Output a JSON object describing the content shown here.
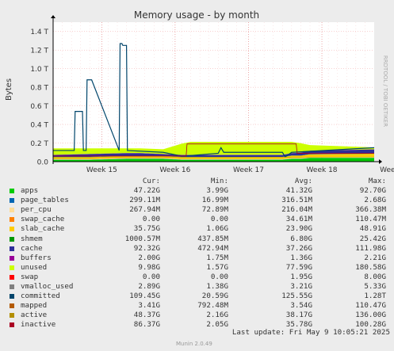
{
  "chart_data": {
    "type": "area",
    "title": "Memory usage - by month",
    "ylabel": "Bytes",
    "side_label": "RRDTOOL / TOBI OETIKER",
    "ylim": [
      0,
      1.5
    ],
    "yunit": "T",
    "yticks": [
      {
        "value": 0,
        "label": "0.0"
      },
      {
        "value": 0.2,
        "label": "0.2 T"
      },
      {
        "value": 0.4,
        "label": "0.4 T"
      },
      {
        "value": 0.6,
        "label": "0.6 T"
      },
      {
        "value": 0.8,
        "label": "0.8 T"
      },
      {
        "value": 1.0,
        "label": "1.0 T"
      },
      {
        "value": 1.2,
        "label": "1.2 T"
      },
      {
        "value": 1.4,
        "label": "1.4 T"
      }
    ],
    "xlim": [
      0,
      35
    ],
    "xticks": [
      {
        "value": 5.3,
        "label": "Week 15"
      },
      {
        "value": 13.3,
        "label": "Week 16"
      },
      {
        "value": 21.3,
        "label": "Week 17"
      },
      {
        "value": 29.3,
        "label": "Week 18"
      },
      {
        "value": 37.3,
        "label": "Week 19"
      }
    ],
    "stack_order": [
      "apps",
      "page_tables",
      "per_cpu",
      "swap_cache",
      "slab_cache",
      "shmem",
      "cache",
      "buffers",
      "unused",
      "swap"
    ],
    "x": [
      0,
      4,
      8,
      9,
      9.5,
      12,
      14,
      15,
      17,
      25,
      26,
      27,
      28,
      35
    ],
    "stacks": {
      "apps": [
        0.02,
        0.02,
        0.03,
        0.03,
        0.03,
        0.03,
        0.02,
        0.02,
        0.02,
        0.02,
        0.03,
        0.03,
        0.04,
        0.04
      ],
      "page_tables": [
        0.002,
        0.002,
        0.002,
        0.002,
        0.002,
        0.002,
        0.002,
        0.002,
        0.002,
        0.002,
        0.002,
        0.002,
        0.002,
        0.002
      ],
      "per_cpu": [
        0.005,
        0.005,
        0.005,
        0.005,
        0.005,
        0.005,
        0.005,
        0.005,
        0.005,
        0.005,
        0.005,
        0.005,
        0.005,
        0.005
      ],
      "swap_cache": [
        0.002,
        0.002,
        0.002,
        0.002,
        0.002,
        0.002,
        0.002,
        0.002,
        0.002,
        0.002,
        0.002,
        0.002,
        0.002,
        0.002
      ],
      "slab_cache": [
        0.02,
        0.02,
        0.02,
        0.02,
        0.02,
        0.02,
        0.02,
        0.02,
        0.02,
        0.02,
        0.025,
        0.025,
        0.03,
        0.035
      ],
      "shmem": [
        0.002,
        0.002,
        0.002,
        0.002,
        0.002,
        0.002,
        0.002,
        0.002,
        0.002,
        0.002,
        0.002,
        0.002,
        0.002,
        0.002
      ],
      "cache": [
        0.02,
        0.03,
        0.03,
        0.03,
        0.03,
        0.02,
        0.02,
        0.02,
        0.02,
        0.02,
        0.025,
        0.03,
        0.035,
        0.045
      ],
      "buffers": [
        0.002,
        0.002,
        0.002,
        0.002,
        0.002,
        0.002,
        0.002,
        0.002,
        0.002,
        0.002,
        0.002,
        0.002,
        0.002,
        0.002
      ],
      "unused": [
        0.07,
        0.06,
        0.05,
        0.05,
        0.05,
        0.05,
        0.12,
        0.14,
        0.14,
        0.14,
        0.12,
        0.1,
        0.06,
        0.02
      ],
      "swap": [
        0,
        0,
        0,
        0,
        0,
        0,
        0,
        0,
        0,
        0,
        0,
        0,
        0,
        0
      ]
    },
    "lines": [
      {
        "name": "committed",
        "color": "#00456b",
        "width": 1.2,
        "x": [
          0,
          2.3,
          2.4,
          3.2,
          3.3,
          3.6,
          3.7,
          4.2,
          7.2,
          7.3,
          7.5,
          7.6,
          8.0,
          8.1,
          12,
          14,
          14.3,
          18,
          18.3,
          18.6,
          25,
          25.3,
          26,
          35
        ],
        "y": [
          0.12,
          0.12,
          0.54,
          0.54,
          0.12,
          0.12,
          0.88,
          0.88,
          0.12,
          1.27,
          1.27,
          1.25,
          1.25,
          0.12,
          0.1,
          0.06,
          0.06,
          0.09,
          0.15,
          0.1,
          0.1,
          0.05,
          0.1,
          0.15
        ]
      },
      {
        "name": "inactive",
        "color": "#aa0022",
        "width": 0.8,
        "x": [
          0,
          8,
          14.5,
          14.6,
          26.5,
          26.6,
          35
        ],
        "y": [
          0.06,
          0.06,
          0.06,
          0.19,
          0.19,
          0.09,
          0.09
        ]
      },
      {
        "name": "active",
        "color": "#ccaa00",
        "width": 0.8,
        "x": [
          0,
          35
        ],
        "y": [
          0.04,
          0.05
        ]
      }
    ],
    "legend_header": {
      "cur": "Cur:",
      "min": "Min:",
      "avg": "Avg:",
      "max": "Max:"
    },
    "series": [
      {
        "name": "apps",
        "color": "#00cc00",
        "cur": "47.22G",
        "min": "3.99G",
        "avg": "41.32G",
        "max": "92.70G"
      },
      {
        "name": "page_tables",
        "color": "#0066b3",
        "cur": "299.11M",
        "min": "16.99M",
        "avg": "316.51M",
        "max": "2.68G"
      },
      {
        "name": "per_cpu",
        "color": "#ffdd99",
        "cur": "267.94M",
        "min": "72.89M",
        "avg": "216.04M",
        "max": "366.38M"
      },
      {
        "name": "swap_cache",
        "color": "#ff8000",
        "cur": "0.00",
        "min": "0.00",
        "avg": "34.61M",
        "max": "110.47M"
      },
      {
        "name": "slab_cache",
        "color": "#ffcc00",
        "cur": "35.75G",
        "min": "1.06G",
        "avg": "23.90G",
        "max": "48.91G"
      },
      {
        "name": "shmem",
        "color": "#009900",
        "cur": "1000.57M",
        "min": "437.85M",
        "avg": "6.80G",
        "max": "25.42G"
      },
      {
        "name": "cache",
        "color": "#2e2e99",
        "cur": "92.32G",
        "min": "472.94M",
        "avg": "37.26G",
        "max": "111.98G"
      },
      {
        "name": "buffers",
        "color": "#990099",
        "cur": "2.00G",
        "min": "1.75M",
        "avg": "1.36G",
        "max": "2.21G"
      },
      {
        "name": "unused",
        "color": "#ccff00",
        "cur": "9.98G",
        "min": "1.57G",
        "avg": "77.59G",
        "max": "180.58G"
      },
      {
        "name": "swap",
        "color": "#ff0000",
        "cur": "0.00",
        "min": "0.00",
        "avg": "1.95G",
        "max": "8.00G"
      },
      {
        "name": "vmalloc_used",
        "color": "#808080",
        "cur": "2.89G",
        "min": "1.38G",
        "avg": "3.21G",
        "max": "5.33G"
      },
      {
        "name": "committed",
        "color": "#00456b",
        "cur": "109.45G",
        "min": "20.59G",
        "avg": "125.55G",
        "max": "1.28T"
      },
      {
        "name": "mapped",
        "color": "#b35a00",
        "cur": "3.41G",
        "min": "792.48M",
        "avg": "3.54G",
        "max": "110.47G"
      },
      {
        "name": "active",
        "color": "#b38f00",
        "cur": "48.37G",
        "min": "2.16G",
        "avg": "38.17G",
        "max": "136.00G"
      },
      {
        "name": "inactive",
        "color": "#aa0022",
        "cur": "86.37G",
        "min": "2.05G",
        "avg": "35.78G",
        "max": "100.28G"
      }
    ]
  },
  "footer": {
    "last_update": "Last update:  Fri May  9 10:05:21 2025",
    "version": "Munin 2.0.49"
  }
}
